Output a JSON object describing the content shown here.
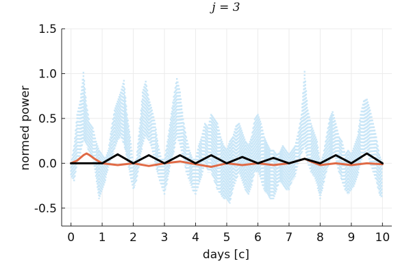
{
  "chart_data": {
    "type": "line",
    "title": "j = 3",
    "xlabel": "days [c]",
    "ylabel": "normed power",
    "xlim": [
      -0.3,
      10.3
    ],
    "ylim": [
      -0.7,
      1.5
    ],
    "xticks": [
      0,
      1,
      2,
      3,
      4,
      5,
      6,
      7,
      8,
      9,
      10
    ],
    "xtick_labels": [
      "0",
      "1",
      "2",
      "3",
      "4",
      "5",
      "6",
      "7",
      "8",
      "9",
      "10"
    ],
    "yticks": [
      -0.5,
      0.0,
      0.5,
      1.0,
      1.5
    ],
    "ytick_labels": [
      "-0.5",
      "0.0",
      "0.5",
      "1.0",
      "1.5"
    ],
    "grid": true,
    "legend": "none",
    "series": [
      {
        "style": "dotted",
        "color": "#c9e6f7",
        "x": [
          0.0,
          0.1,
          0.2,
          0.3,
          0.4,
          0.5,
          0.6,
          0.7,
          0.8,
          0.9,
          1.0,
          1.1,
          1.2,
          1.3,
          1.4,
          1.5,
          1.6,
          1.7,
          1.8,
          1.9,
          2.0,
          2.1,
          2.2,
          2.3,
          2.4,
          2.5,
          2.6,
          2.7,
          2.8,
          2.9,
          3.0,
          3.1,
          3.2,
          3.3,
          3.4,
          3.5,
          3.6,
          3.7,
          3.8,
          3.9,
          4.0,
          4.1,
          4.2,
          4.3,
          4.4,
          4.5,
          4.6,
          4.7,
          4.8,
          4.9,
          5.0,
          5.1,
          5.2,
          5.3,
          5.4,
          5.5,
          5.6,
          5.7,
          5.8,
          5.9,
          6.0,
          6.1,
          6.2,
          6.3,
          6.4,
          6.5,
          6.6,
          6.7,
          6.8,
          6.9,
          7.0,
          7.1,
          7.2,
          7.3,
          7.4,
          7.5,
          7.6,
          7.7,
          7.8,
          7.9,
          8.0,
          8.1,
          8.2,
          8.3,
          8.4,
          8.5,
          8.6,
          8.7,
          8.8,
          8.9,
          9.0,
          9.1,
          9.2,
          9.3,
          9.4,
          9.5,
          9.6,
          9.7,
          9.8,
          9.9,
          10.0
        ],
        "upper": [
          0.0,
          0.2,
          0.55,
          0.7,
          1.02,
          0.65,
          0.45,
          0.4,
          0.25,
          0.15,
          0.1,
          0.05,
          0.15,
          0.4,
          0.6,
          0.7,
          0.8,
          0.93,
          0.55,
          0.3,
          0.0,
          0.05,
          0.4,
          0.8,
          0.92,
          0.72,
          0.6,
          0.45,
          0.2,
          0.05,
          0.05,
          0.25,
          0.5,
          0.75,
          0.95,
          0.8,
          0.5,
          0.3,
          0.15,
          0.05,
          0.05,
          0.2,
          0.3,
          0.45,
          0.4,
          0.55,
          0.5,
          0.45,
          0.3,
          0.2,
          0.15,
          0.25,
          0.3,
          0.42,
          0.45,
          0.35,
          0.25,
          0.2,
          0.3,
          0.5,
          0.55,
          0.45,
          0.3,
          0.22,
          0.15,
          0.15,
          0.1,
          0.12,
          0.2,
          0.15,
          0.1,
          0.15,
          0.2,
          0.35,
          0.55,
          1.03,
          0.6,
          0.45,
          0.35,
          0.25,
          0.0,
          0.1,
          0.3,
          0.5,
          0.58,
          0.45,
          0.3,
          0.25,
          0.1,
          0.15,
          0.1,
          0.2,
          0.3,
          0.55,
          0.7,
          0.72,
          0.6,
          0.45,
          0.3,
          0.1,
          0.0
        ],
        "lower": [
          -0.15,
          -0.2,
          0.0,
          0.1,
          0.25,
          0.2,
          0.1,
          0.05,
          -0.15,
          -0.4,
          -0.3,
          -0.2,
          -0.05,
          0.05,
          0.15,
          0.25,
          0.3,
          0.2,
          0.05,
          -0.15,
          -0.3,
          -0.2,
          0.0,
          0.2,
          0.3,
          0.25,
          0.15,
          0.0,
          -0.15,
          -0.25,
          -0.35,
          -0.2,
          0.0,
          0.1,
          0.3,
          0.2,
          0.05,
          -0.1,
          -0.2,
          -0.3,
          -0.35,
          -0.25,
          -0.15,
          0.0,
          -0.1,
          -0.1,
          -0.2,
          -0.3,
          -0.35,
          -0.4,
          -0.4,
          -0.45,
          -0.3,
          -0.2,
          -0.1,
          -0.2,
          -0.3,
          -0.35,
          -0.25,
          -0.1,
          -0.1,
          -0.2,
          -0.3,
          -0.35,
          -0.4,
          -0.4,
          -0.3,
          -0.2,
          -0.25,
          -0.3,
          -0.3,
          -0.2,
          -0.15,
          0.0,
          0.1,
          0.2,
          0.0,
          -0.1,
          -0.15,
          -0.25,
          -0.4,
          -0.25,
          -0.1,
          0.0,
          0.1,
          0.05,
          -0.1,
          -0.2,
          -0.3,
          -0.35,
          -0.3,
          -0.25,
          -0.15,
          0.0,
          0.1,
          0.15,
          0.0,
          -0.1,
          -0.2,
          -0.35,
          -0.4
        ]
      },
      {
        "style": "solid",
        "color": "#e06a45",
        "x": [
          0.0,
          0.2,
          0.4,
          0.5,
          0.6,
          0.8,
          1.0,
          1.5,
          2.0,
          2.5,
          3.0,
          3.5,
          4.0,
          4.5,
          5.0,
          5.5,
          6.0,
          6.5,
          7.0,
          7.3,
          7.5,
          7.7,
          8.0,
          8.5,
          9.0,
          9.5,
          10.0
        ],
        "y": [
          0.0,
          0.03,
          0.09,
          0.11,
          0.09,
          0.04,
          0.0,
          -0.02,
          0.0,
          -0.03,
          0.0,
          0.02,
          -0.01,
          -0.04,
          0.0,
          -0.02,
          0.0,
          -0.02,
          0.0,
          0.03,
          0.05,
          0.02,
          -0.02,
          0.0,
          -0.02,
          0.0,
          -0.01
        ]
      },
      {
        "style": "solid",
        "color": "#000000",
        "x": [
          0.0,
          0.5,
          1.0,
          1.5,
          2.0,
          2.5,
          3.0,
          3.5,
          4.0,
          4.5,
          5.0,
          5.5,
          6.0,
          6.5,
          7.0,
          7.5,
          8.0,
          8.5,
          9.0,
          9.5,
          10.0
        ],
        "y": [
          0.0,
          0.0,
          0.0,
          0.1,
          0.0,
          0.09,
          0.0,
          0.09,
          0.0,
          0.09,
          0.0,
          0.07,
          0.0,
          0.06,
          0.0,
          0.05,
          0.0,
          0.09,
          0.0,
          0.11,
          0.0
        ]
      }
    ]
  }
}
